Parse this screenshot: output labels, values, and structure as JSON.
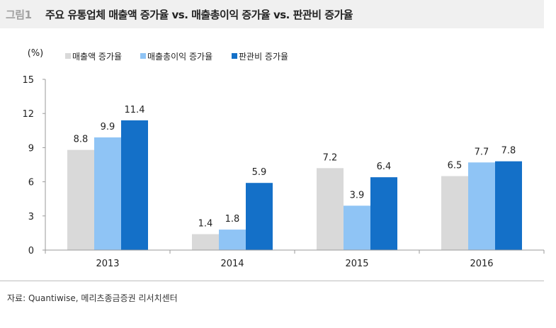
{
  "header": {
    "figure_no": "그림1",
    "title": "주요 유통업체 매출액 증가율 vs. 매출총이익 증가율 vs. 판관비 증가율"
  },
  "source": "자료: Quantiwise, 메리츠종금증권 리서치센터",
  "colors": {
    "series": [
      "#d9d9d9",
      "#8fc4f5",
      "#1470c8"
    ]
  },
  "chart_data": {
    "type": "bar",
    "ylabel": "(%)",
    "ylim": [
      0,
      15
    ],
    "yticks": [
      0,
      3,
      6,
      9,
      12,
      15
    ],
    "grid": false,
    "legend_position": "top",
    "categories": [
      "2013",
      "2014",
      "2015",
      "2016"
    ],
    "series": [
      {
        "name": "매출액 증가율",
        "values": [
          8.8,
          1.4,
          7.2,
          6.5
        ],
        "labels": [
          "8.8",
          "1.4",
          "7.2",
          "6.5"
        ]
      },
      {
        "name": "매출총이익 증가율",
        "values": [
          9.9,
          1.8,
          3.9,
          7.7
        ],
        "labels": [
          "9.9",
          "1.8",
          "3.9",
          "7.7"
        ]
      },
      {
        "name": "판관비 증가율",
        "values": [
          11.4,
          5.9,
          6.4,
          7.8
        ],
        "labels": [
          "11.4",
          "5.9",
          "6.4",
          "7.8"
        ]
      }
    ]
  }
}
